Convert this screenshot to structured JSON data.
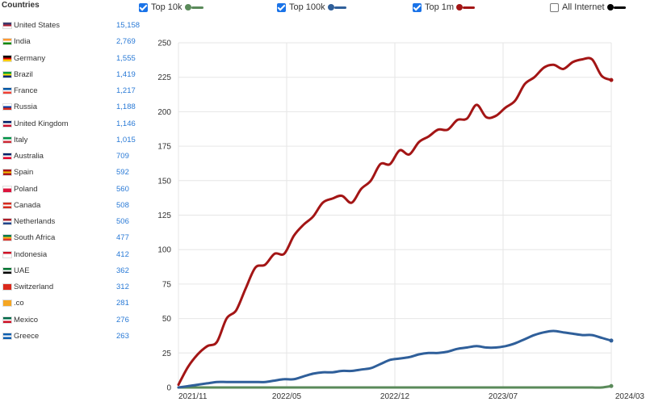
{
  "countries_title": "Countries",
  "countries": [
    {
      "name": "United States",
      "count": "15,158",
      "flag_colors": [
        "#3c3b6e",
        "#b22234",
        "#ffffff"
      ]
    },
    {
      "name": "India",
      "count": "2,769",
      "flag_colors": [
        "#ff9933",
        "#ffffff",
        "#138808"
      ]
    },
    {
      "name": "Germany",
      "count": "1,555",
      "flag_colors": [
        "#000000",
        "#dd0000",
        "#ffce00"
      ]
    },
    {
      "name": "Brazil",
      "count": "1,419",
      "flag_colors": [
        "#009c3b",
        "#ffdf00",
        "#002776"
      ]
    },
    {
      "name": "France",
      "count": "1,217",
      "flag_colors": [
        "#0055a4",
        "#ffffff",
        "#ef4135"
      ]
    },
    {
      "name": "Russia",
      "count": "1,188",
      "flag_colors": [
        "#ffffff",
        "#0039a6",
        "#d52b1e"
      ]
    },
    {
      "name": "United Kingdom",
      "count": "1,146",
      "flag_colors": [
        "#012169",
        "#ffffff",
        "#c8102e"
      ]
    },
    {
      "name": "Italy",
      "count": "1,015",
      "flag_colors": [
        "#009246",
        "#ffffff",
        "#ce2b37"
      ]
    },
    {
      "name": "Australia",
      "count": "709",
      "flag_colors": [
        "#012169",
        "#ffffff",
        "#e4002b"
      ]
    },
    {
      "name": "Spain",
      "count": "592",
      "flag_colors": [
        "#aa151b",
        "#f1bf00",
        "#aa151b"
      ]
    },
    {
      "name": "Poland",
      "count": "560",
      "flag_colors": [
        "#ffffff",
        "#dc143c",
        "#dc143c"
      ]
    },
    {
      "name": "Canada",
      "count": "508",
      "flag_colors": [
        "#d52b1e",
        "#ffffff",
        "#d52b1e"
      ]
    },
    {
      "name": "Netherlands",
      "count": "506",
      "flag_colors": [
        "#ae1c28",
        "#ffffff",
        "#21468b"
      ]
    },
    {
      "name": "South Africa",
      "count": "477",
      "flag_colors": [
        "#007a4d",
        "#ffb612",
        "#de3831"
      ]
    },
    {
      "name": "Indonesia",
      "count": "412",
      "flag_colors": [
        "#ce1126",
        "#ffffff",
        "#ffffff"
      ]
    },
    {
      "name": "UAE",
      "count": "362",
      "flag_colors": [
        "#00732f",
        "#ffffff",
        "#000000"
      ]
    },
    {
      "name": "Switzerland",
      "count": "312",
      "flag_colors": [
        "#da291c",
        "#da291c",
        "#da291c"
      ]
    },
    {
      "name": ".co",
      "count": "281",
      "flag_colors": [
        "#f5a623",
        "#f5a623",
        "#f5a623"
      ]
    },
    {
      "name": "Mexico",
      "count": "276",
      "flag_colors": [
        "#006847",
        "#ffffff",
        "#ce1126"
      ]
    },
    {
      "name": "Greece",
      "count": "263",
      "flag_colors": [
        "#0d5eaf",
        "#ffffff",
        "#0d5eaf"
      ]
    }
  ],
  "legend": [
    {
      "label": "Top 10k",
      "checked": true,
      "color": "#5a8a5a"
    },
    {
      "label": "Top 100k",
      "checked": true,
      "color": "#2f5f9a"
    },
    {
      "label": "Top 1m",
      "checked": true,
      "color": "#a31515"
    },
    {
      "label": "All Internet",
      "checked": false,
      "color": "#000000"
    }
  ],
  "chart_data": {
    "type": "line",
    "x_tick_labels": [
      "2021/11",
      "2022/05",
      "2022/12",
      "2023/07",
      "2024/03"
    ],
    "y_tick_labels": [
      "0",
      "25",
      "50",
      "75",
      "100",
      "125",
      "150",
      "175",
      "200",
      "225",
      "250"
    ],
    "ylim": [
      0,
      250
    ],
    "grid": true,
    "x_is_month_index": false,
    "series": [
      {
        "name": "Top 1m",
        "color": "#a31515",
        "values": [
          2,
          15,
          24,
          30,
          33,
          50,
          56,
          72,
          87,
          89,
          97,
          97,
          110,
          118,
          124,
          134,
          137,
          139,
          134,
          144,
          150,
          162,
          162,
          172,
          169,
          178,
          182,
          187,
          187,
          194,
          195,
          205,
          196,
          197,
          203,
          208,
          220,
          225,
          232,
          234,
          231,
          236,
          238,
          238,
          226,
          223
        ]
      },
      {
        "name": "Top 100k",
        "color": "#2f5f9a",
        "values": [
          0,
          1,
          2,
          3,
          4,
          4,
          4,
          4,
          4,
          4,
          5,
          6,
          6,
          8,
          10,
          11,
          11,
          12,
          12,
          13,
          14,
          17,
          20,
          21,
          22,
          24,
          25,
          25,
          26,
          28,
          29,
          30,
          29,
          29,
          30,
          32,
          35,
          38,
          40,
          41,
          40,
          39,
          38,
          38,
          36,
          34
        ]
      },
      {
        "name": "Top 10k",
        "color": "#5a8a5a",
        "values": [
          0,
          0,
          0,
          0,
          0,
          0,
          0,
          0,
          0,
          0,
          0,
          0,
          0,
          0,
          0,
          0,
          0,
          0,
          0,
          0,
          0,
          0,
          0,
          0,
          0,
          0,
          0,
          0,
          0,
          0,
          0,
          0,
          0,
          0,
          0,
          0,
          0,
          0,
          0,
          0,
          0,
          0,
          0,
          0,
          0,
          1
        ]
      }
    ]
  }
}
